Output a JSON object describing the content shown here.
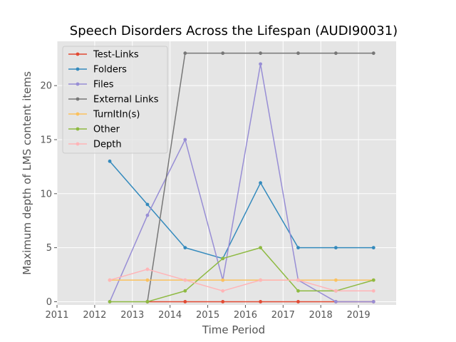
{
  "chart_data": {
    "type": "line",
    "title": "Speech Disorders Across the Lifespan (AUDI90031)",
    "xlabel": "Time Period",
    "ylabel": "Maximum depth of LMS content items",
    "xlim": [
      2011,
      2020
    ],
    "ylim": [
      -0.3,
      24.1
    ],
    "xticks": [
      2011,
      2012,
      2013,
      2014,
      2015,
      2016,
      2017,
      2018,
      2019
    ],
    "yticks": [
      0,
      5,
      10,
      15,
      20
    ],
    "grid": true,
    "legend_position": "top-left",
    "background": "#e5e5e5",
    "series": [
      {
        "name": "Test-Links",
        "color": "#e24a33",
        "points": [
          [
            2013.4,
            0
          ],
          [
            2014.4,
            0
          ],
          [
            2015.4,
            0
          ],
          [
            2016.4,
            0
          ],
          [
            2017.4,
            0
          ],
          [
            2018.4,
            0
          ],
          [
            2019.4,
            0
          ]
        ]
      },
      {
        "name": "Folders",
        "color": "#348abd",
        "points": [
          [
            2012.4,
            13
          ],
          [
            2013.4,
            9
          ],
          [
            2014.4,
            5
          ],
          [
            2015.4,
            4
          ],
          [
            2016.4,
            11
          ],
          [
            2017.4,
            5
          ],
          [
            2018.4,
            5
          ],
          [
            2019.4,
            5
          ]
        ]
      },
      {
        "name": "Files",
        "color": "#988ed5",
        "points": [
          [
            2012.4,
            0
          ],
          [
            2013.4,
            8
          ],
          [
            2014.4,
            15
          ],
          [
            2015.4,
            2
          ],
          [
            2016.4,
            22
          ],
          [
            2017.4,
            2
          ],
          [
            2018.4,
            0
          ],
          [
            2019.4,
            0
          ]
        ]
      },
      {
        "name": "External Links",
        "color": "#777777",
        "points": [
          [
            2013.4,
            0
          ],
          [
            2014.4,
            23
          ],
          [
            2015.4,
            23
          ],
          [
            2016.4,
            23
          ],
          [
            2017.4,
            23
          ],
          [
            2018.4,
            23
          ],
          [
            2019.4,
            23
          ]
        ]
      },
      {
        "name": "TurnItIn(s)",
        "color": "#fbc15e",
        "points": [
          [
            2012.4,
            2
          ],
          [
            2013.4,
            2
          ],
          [
            2014.4,
            2
          ],
          [
            2015.4,
            2
          ],
          [
            2016.4,
            2
          ],
          [
            2017.4,
            2
          ],
          [
            2018.4,
            2
          ],
          [
            2019.4,
            2
          ]
        ]
      },
      {
        "name": "Other",
        "color": "#8eba42",
        "points": [
          [
            2012.4,
            0
          ],
          [
            2013.4,
            0
          ],
          [
            2014.4,
            1
          ],
          [
            2015.4,
            4
          ],
          [
            2016.4,
            5
          ],
          [
            2017.4,
            1
          ],
          [
            2018.4,
            1
          ],
          [
            2019.4,
            2
          ]
        ]
      },
      {
        "name": "Depth",
        "color": "#ffb5b8",
        "points": [
          [
            2012.4,
            2
          ],
          [
            2013.4,
            3
          ],
          [
            2014.4,
            2
          ],
          [
            2015.4,
            1
          ],
          [
            2016.4,
            2
          ],
          [
            2017.4,
            2
          ],
          [
            2018.4,
            1
          ],
          [
            2019.4,
            1
          ]
        ]
      }
    ]
  }
}
